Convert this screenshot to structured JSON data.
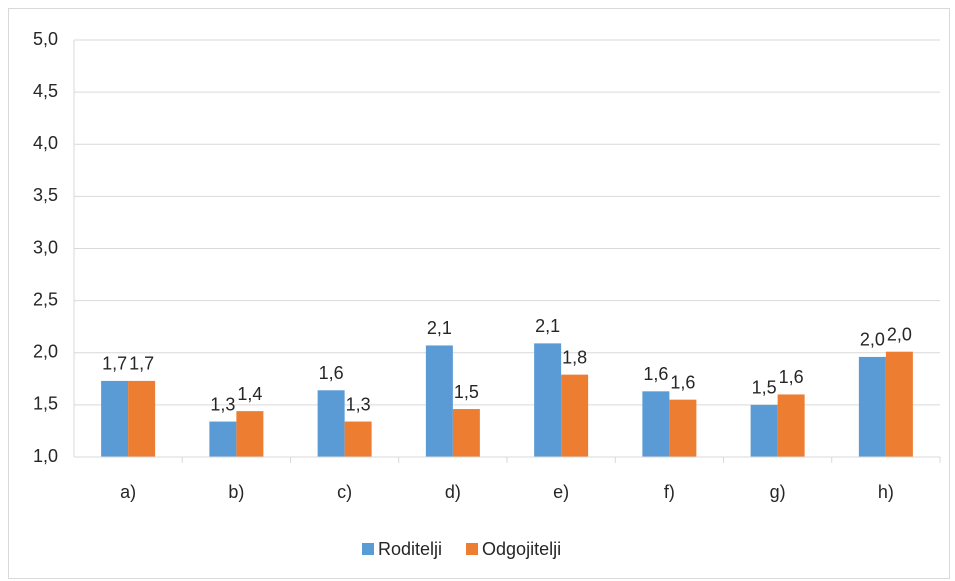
{
  "chart_data": {
    "type": "bar",
    "categories": [
      "a)",
      "b)",
      "c)",
      "d)",
      "e)",
      "f)",
      "g)",
      "h)"
    ],
    "series": [
      {
        "name": "Roditelji",
        "color": "#5b9bd5",
        "values": [
          1.73,
          1.34,
          1.64,
          2.07,
          2.09,
          1.63,
          1.5,
          1.96
        ],
        "value_labels": [
          "1,7",
          "1,3",
          "1,6",
          "2,1",
          "2,1",
          "1,6",
          "1,5",
          "2,0"
        ]
      },
      {
        "name": "Odgojitelji",
        "color": "#ed7d31",
        "values": [
          1.73,
          1.44,
          1.34,
          1.46,
          1.79,
          1.55,
          1.6,
          2.01
        ],
        "value_labels": [
          "1,7",
          "1,4",
          "1,3",
          "1,5",
          "1,8",
          "1,6",
          "1,6",
          "2,0"
        ]
      }
    ],
    "ylim": [
      1,
      5
    ],
    "yticks": [
      {
        "value": 1,
        "label": "1,0"
      },
      {
        "value": 1.5,
        "label": "1,5"
      },
      {
        "value": 2,
        "label": "2,0"
      },
      {
        "value": 2.5,
        "label": "2,5"
      },
      {
        "value": 3,
        "label": "3,0"
      },
      {
        "value": 3.5,
        "label": "3,5"
      },
      {
        "value": 4,
        "label": "4,0"
      },
      {
        "value": 4.5,
        "label": "4,5"
      },
      {
        "value": 5,
        "label": "5,0"
      }
    ],
    "grid": true,
    "legend": "bottom"
  }
}
